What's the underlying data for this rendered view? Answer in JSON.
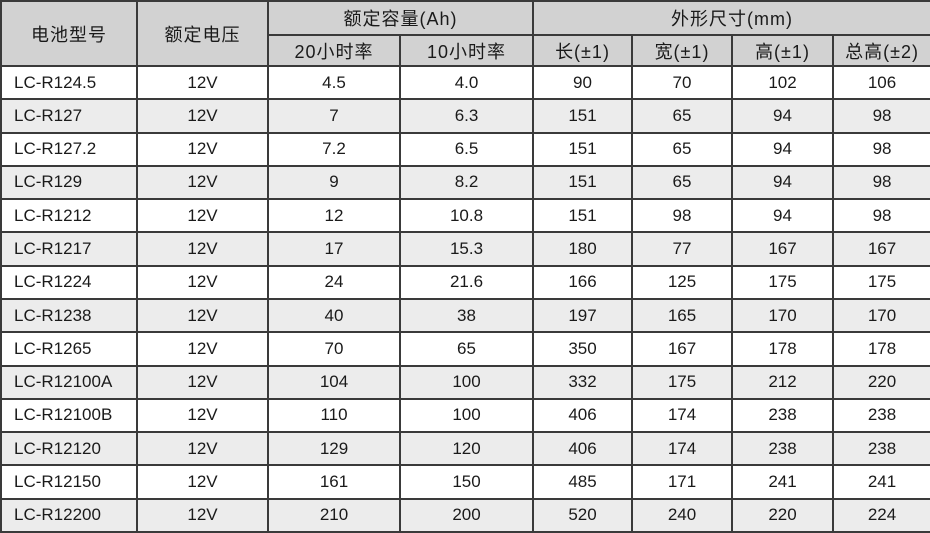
{
  "headers": {
    "model": "电池型号",
    "voltage": "额定电压",
    "capacity_group": "额定容量(Ah)",
    "capacity_20h": "20小时率",
    "capacity_10h": "10小时率",
    "dimensions_group": "外形尺寸(mm)",
    "length": "长(±1)",
    "width": "宽(±1)",
    "height": "高(±1)",
    "total_height": "总高(±2)"
  },
  "rows": [
    {
      "model": "LC-R124.5",
      "voltage": "12V",
      "cap20": "4.5",
      "cap10": "4.0",
      "length": "90",
      "width": "70",
      "height": "102",
      "total_height": "106"
    },
    {
      "model": "LC-R127",
      "voltage": "12V",
      "cap20": "7",
      "cap10": "6.3",
      "length": "151",
      "width": "65",
      "height": "94",
      "total_height": "98"
    },
    {
      "model": "LC-R127.2",
      "voltage": "12V",
      "cap20": "7.2",
      "cap10": "6.5",
      "length": "151",
      "width": "65",
      "height": "94",
      "total_height": "98"
    },
    {
      "model": "LC-R129",
      "voltage": "12V",
      "cap20": "9",
      "cap10": "8.2",
      "length": "151",
      "width": "65",
      "height": "94",
      "total_height": "98"
    },
    {
      "model": "LC-R1212",
      "voltage": "12V",
      "cap20": "12",
      "cap10": "10.8",
      "length": "151",
      "width": "98",
      "height": "94",
      "total_height": "98"
    },
    {
      "model": "LC-R1217",
      "voltage": "12V",
      "cap20": "17",
      "cap10": "15.3",
      "length": "180",
      "width": "77",
      "height": "167",
      "total_height": "167"
    },
    {
      "model": "LC-R1224",
      "voltage": "12V",
      "cap20": "24",
      "cap10": "21.6",
      "length": "166",
      "width": "125",
      "height": "175",
      "total_height": "175"
    },
    {
      "model": "LC-R1238",
      "voltage": "12V",
      "cap20": "40",
      "cap10": "38",
      "length": "197",
      "width": "165",
      "height": "170",
      "total_height": "170"
    },
    {
      "model": "LC-R1265",
      "voltage": "12V",
      "cap20": "70",
      "cap10": "65",
      "length": "350",
      "width": "167",
      "height": "178",
      "total_height": "178"
    },
    {
      "model": "LC-R12100A",
      "voltage": "12V",
      "cap20": "104",
      "cap10": "100",
      "length": "332",
      "width": "175",
      "height": "212",
      "total_height": "220"
    },
    {
      "model": "LC-R12100B",
      "voltage": "12V",
      "cap20": "110",
      "cap10": "100",
      "length": "406",
      "width": "174",
      "height": "238",
      "total_height": "238"
    },
    {
      "model": "LC-R12120",
      "voltage": "12V",
      "cap20": "129",
      "cap10": "120",
      "length": "406",
      "width": "174",
      "height": "238",
      "total_height": "238"
    },
    {
      "model": "LC-R12150",
      "voltage": "12V",
      "cap20": "161",
      "cap10": "150",
      "length": "485",
      "width": "171",
      "height": "241",
      "total_height": "241"
    },
    {
      "model": "LC-R12200",
      "voltage": "12V",
      "cap20": "210",
      "cap10": "200",
      "length": "520",
      "width": "240",
      "height": "220",
      "total_height": "224"
    }
  ]
}
